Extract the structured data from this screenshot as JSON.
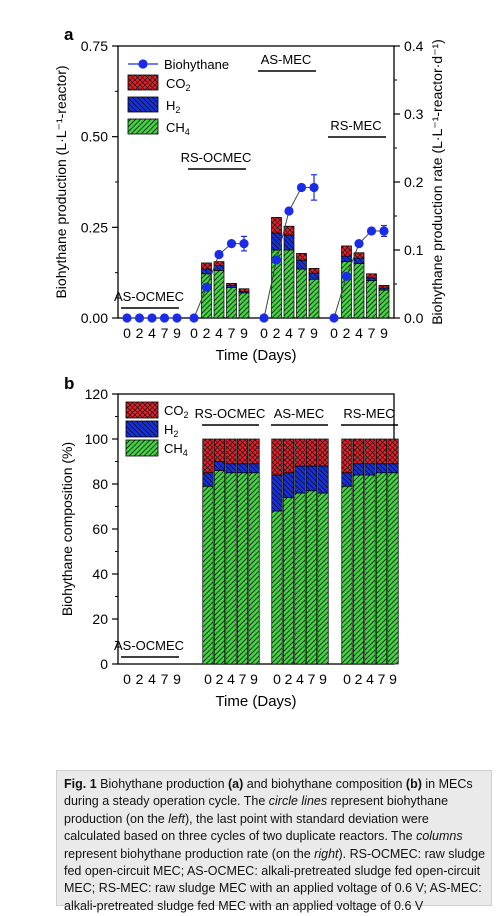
{
  "colors": {
    "co2": "#e8202a",
    "h2": "#1530e0",
    "ch4": "#3fd63f",
    "line": "#1a2ce8",
    "caption_bg": "#eaeaea"
  },
  "chart_data": [
    {
      "panel_label": "a",
      "type": "bar+line",
      "xlabel": "Time (Days)",
      "ylabel": "Biohythane production (L·L⁻¹-reactor)",
      "y2label": "Biohythane production rate (L·L⁻¹-reactor·d⁻¹)",
      "ylim": [
        0,
        0.75
      ],
      "y2lim": [
        0,
        0.4
      ],
      "yticks": [
        "0.00",
        "0.25",
        "0.50",
        "0.75"
      ],
      "y2ticks": [
        "0.0",
        "0.1",
        "0.2",
        "0.3",
        "0.4"
      ],
      "x_day_labels": [
        "0",
        "2",
        "4",
        "7",
        "9"
      ],
      "legend": [
        "Biohythane",
        "CO2",
        "H2",
        "CH4"
      ],
      "groups": [
        {
          "name": "AS-OCMEC",
          "days": [
            0,
            2,
            4,
            7,
            9
          ],
          "biohythane": [
            0.0,
            0.0,
            0.0,
            0.0,
            0.0
          ],
          "rate_ch4": [
            0,
            0,
            0,
            0,
            0
          ],
          "rate_h2": [
            0,
            0,
            0,
            0,
            0
          ],
          "rate_co2": [
            0,
            0,
            0,
            0,
            0
          ]
        },
        {
          "name": "RS-OCMEC",
          "days": [
            0,
            2,
            4,
            7,
            9
          ],
          "biohythane": [
            0.0,
            0.085,
            0.175,
            0.205,
            0.205
          ],
          "error_last": 0.02,
          "rate_ch4": [
            0.0,
            0.065,
            0.07,
            0.045,
            0.037
          ],
          "rate_h2": [
            0.0,
            0.007,
            0.007,
            0.003,
            0.002
          ],
          "rate_co2": [
            0.0,
            0.009,
            0.006,
            0.003,
            0.004
          ]
        },
        {
          "name": "AS-MEC",
          "days": [
            0,
            2,
            4,
            7,
            9
          ],
          "biohythane": [
            0.0,
            0.16,
            0.295,
            0.36,
            0.36
          ],
          "error_last": 0.035,
          "rate_ch4": [
            0.0,
            0.1,
            0.1,
            0.072,
            0.057
          ],
          "rate_h2": [
            0.0,
            0.025,
            0.022,
            0.013,
            0.009
          ],
          "rate_co2": [
            0.0,
            0.023,
            0.013,
            0.01,
            0.007
          ]
        },
        {
          "name": "RS-MEC",
          "days": [
            0,
            2,
            4,
            7,
            9
          ],
          "biohythane": [
            0.0,
            0.115,
            0.205,
            0.24,
            0.24
          ],
          "error_last": 0.015,
          "rate_ch4": [
            0.0,
            0.083,
            0.08,
            0.055,
            0.041
          ],
          "rate_h2": [
            0.0,
            0.008,
            0.008,
            0.004,
            0.003
          ],
          "rate_co2": [
            0.0,
            0.015,
            0.008,
            0.006,
            0.004
          ]
        }
      ]
    },
    {
      "panel_label": "b",
      "type": "stacked-bar",
      "xlabel": "Time (Days)",
      "ylabel": "Biohythane composition (%)",
      "ylim": [
        0,
        120
      ],
      "yticks": [
        "0",
        "20",
        "40",
        "60",
        "80",
        "100",
        "120"
      ],
      "x_day_labels": [
        "0",
        "2",
        "4",
        "7",
        "9"
      ],
      "legend": [
        "CO2",
        "H2",
        "CH4"
      ],
      "groups": [
        {
          "name": "AS-OCMEC",
          "days": [
            0,
            2,
            4,
            7,
            9
          ],
          "ch4": [
            0,
            0,
            0,
            0,
            0
          ],
          "h2": [
            0,
            0,
            0,
            0,
            0
          ],
          "co2": [
            0,
            0,
            0,
            0,
            0
          ]
        },
        {
          "name": "RS-OCMEC",
          "days": [
            0,
            2,
            4,
            7,
            9
          ],
          "ch4": [
            79,
            86,
            85,
            85,
            85
          ],
          "h2": [
            6,
            4,
            4,
            4,
            4
          ],
          "co2": [
            15,
            10,
            11,
            11,
            11
          ]
        },
        {
          "name": "AS-MEC",
          "days": [
            0,
            2,
            4,
            7,
            9
          ],
          "ch4": [
            68,
            74,
            76,
            77,
            76
          ],
          "h2": [
            16,
            11,
            12,
            11,
            12
          ],
          "co2": [
            16,
            15,
            12,
            12,
            12
          ]
        },
        {
          "name": "RS-MEC",
          "days": [
            0,
            2,
            4,
            7,
            9
          ],
          "ch4": [
            79,
            84,
            84,
            85,
            85
          ],
          "h2": [
            6,
            5,
            5,
            4,
            4
          ],
          "co2": [
            15,
            11,
            11,
            11,
            11
          ]
        }
      ]
    }
  ],
  "caption": {
    "fig_label": "Fig. 1",
    "p1": "Biohythane production ",
    "a_label": "(a)",
    "p2": " and biohythane composition ",
    "b_label": "(b)",
    "p3": " in MECs during a steady operation cycle. The ",
    "circle_lines": "circle lines",
    "p4": " represent biohythane production (on the ",
    "left": "left",
    "p5": "), the last point with standard deviation were calculated based on three cycles of two duplicate reactors. The ",
    "columns": "columns",
    "p6": " represent biohythane production rate (on the ",
    "right": "right",
    "p7": "). RS-OCMEC: raw sludge fed open-circuit MEC; AS-OCMEC: alkali-pretreated sludge fed open-circuit MEC; RS-MEC: raw sludge MEC with an applied voltage of 0.6 V; AS-MEC: alkali-pretreated sludge fed MEC with an applied voltage of 0.6 V"
  }
}
